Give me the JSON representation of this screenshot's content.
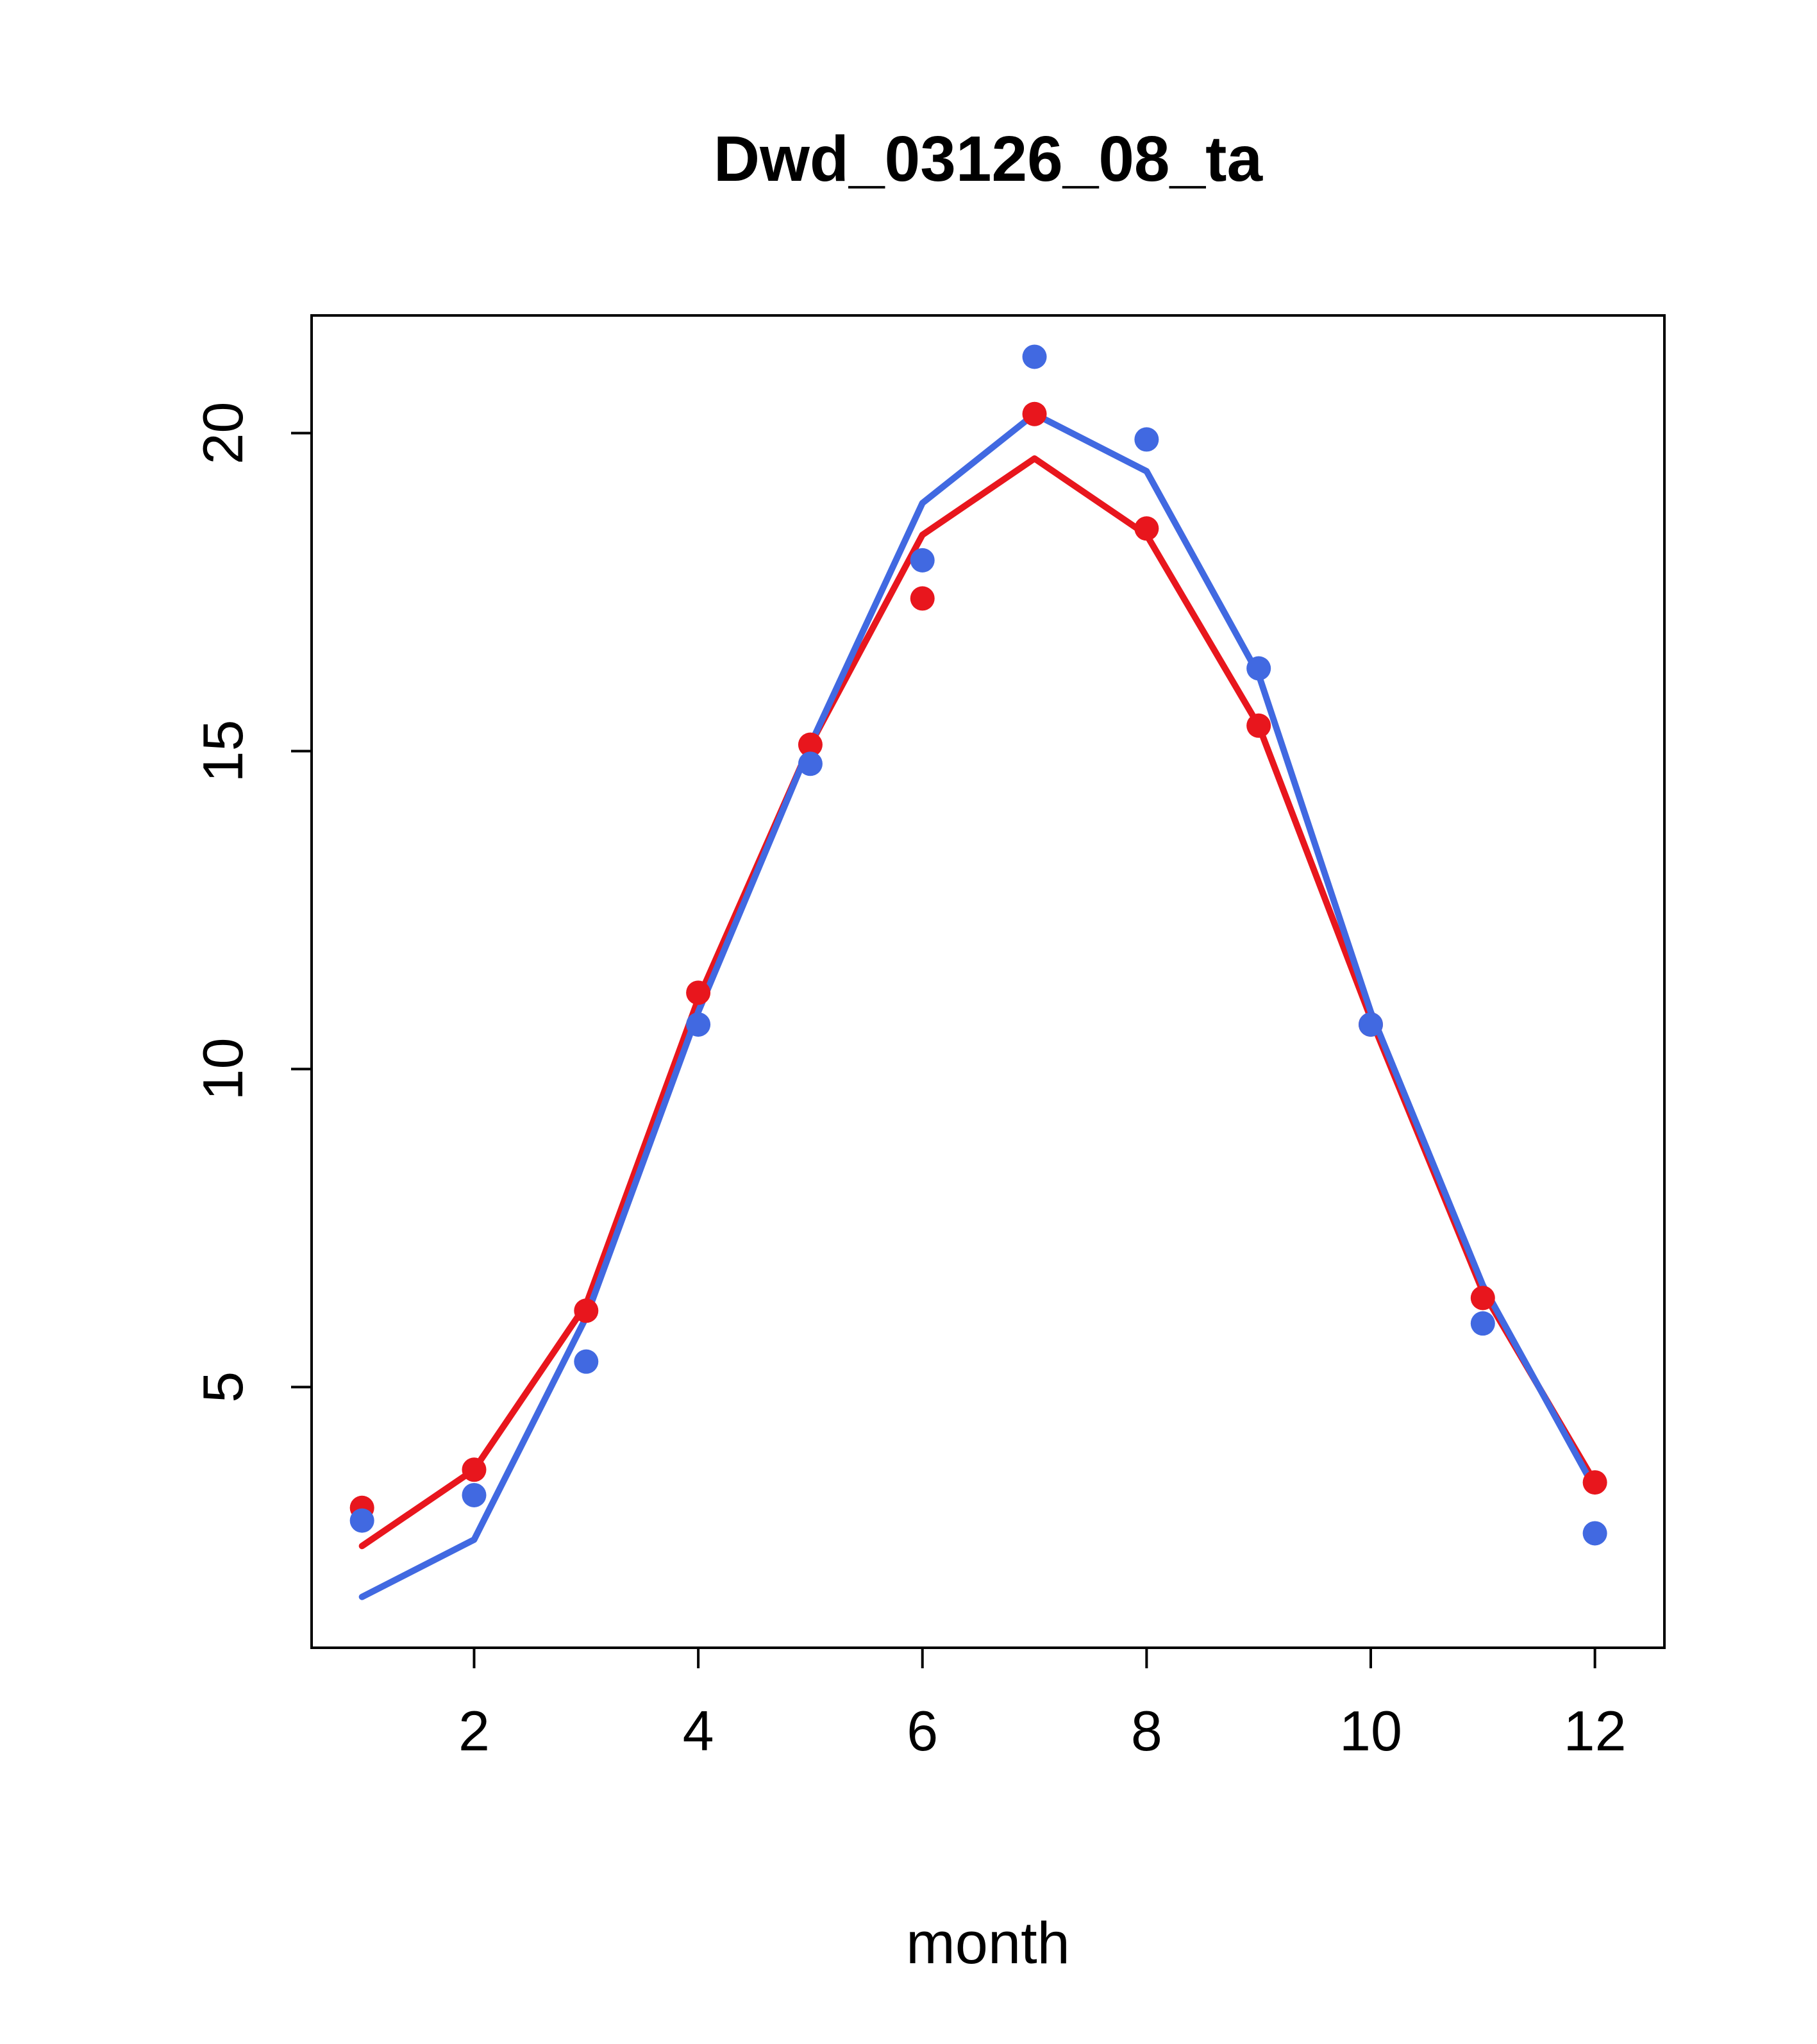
{
  "title": "Dwd_03126_08_ta",
  "chart_data": {
    "type": "line",
    "title": "Dwd_03126_08_ta",
    "xlabel": "month",
    "ylabel": "",
    "x": [
      1,
      2,
      3,
      4,
      5,
      6,
      7,
      8,
      9,
      10,
      11,
      12
    ],
    "xticks": [
      2,
      4,
      6,
      8,
      10,
      12
    ],
    "yticks": [
      5,
      10,
      15,
      20
    ],
    "xlim": [
      0.55,
      12.62
    ],
    "ylim": [
      0.9,
      21.85
    ],
    "grid": false,
    "legend": "none",
    "series": [
      {
        "name": "red-line",
        "draw": "line",
        "color": "#e8161d",
        "values": [
          2.5,
          3.7,
          6.3,
          11.1,
          15.1,
          18.4,
          19.6,
          18.4,
          15.4,
          10.8,
          6.5,
          3.5
        ]
      },
      {
        "name": "blue-line",
        "draw": "line",
        "color": "#4169e1",
        "values": [
          1.7,
          2.6,
          6.1,
          10.9,
          15.1,
          18.9,
          20.3,
          19.4,
          16.2,
          10.9,
          6.6,
          3.4
        ]
      },
      {
        "name": "red-points",
        "draw": "points",
        "color": "#e8161d",
        "values": [
          3.1,
          3.7,
          6.2,
          11.2,
          15.1,
          17.4,
          20.3,
          18.5,
          15.4,
          10.7,
          6.4,
          3.5
        ]
      },
      {
        "name": "blue-points",
        "draw": "points",
        "color": "#4169e1",
        "values": [
          2.9,
          3.3,
          5.4,
          10.7,
          14.8,
          18.0,
          21.2,
          19.9,
          16.3,
          10.7,
          6.0,
          2.7
        ]
      }
    ]
  }
}
